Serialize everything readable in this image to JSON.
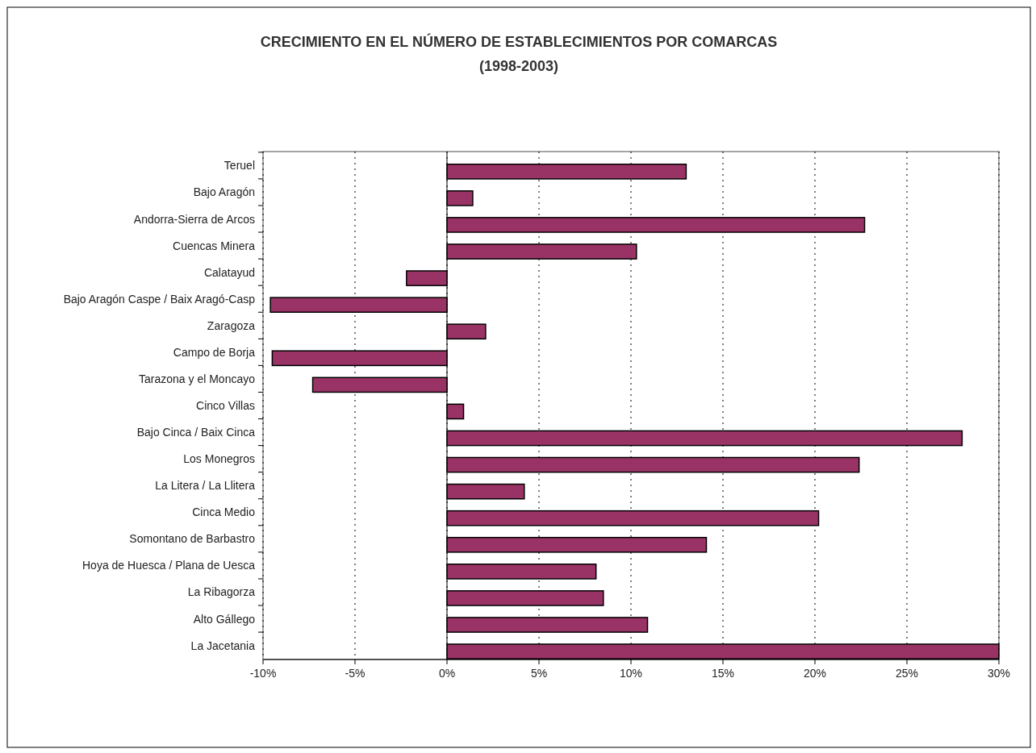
{
  "chart_data": {
    "type": "bar",
    "orientation": "horizontal",
    "title": "CRECIMIENTO EN EL NÚMERO DE ESTABLECIMIENTOS POR COMARCAS",
    "subtitle": "(1998-2003)",
    "categories": [
      "Teruel",
      "Bajo Aragón",
      "Andorra-Sierra de Arcos",
      "Cuencas Minera",
      "Calatayud",
      "Bajo Aragón Caspe / Baix Aragó-Casp",
      "Zaragoza",
      "Campo de Borja",
      "Tarazona y el Moncayo",
      "Cinco Villas",
      "Bajo Cinca / Baix Cinca",
      "Los Monegros",
      "La Litera / La Llitera",
      "Cinca Medio",
      "Somontano de Barbastro",
      "Hoya de Huesca / Plana de Uesca",
      "La Ribagorza",
      "Alto Gállego",
      "La Jacetania"
    ],
    "values": [
      0.13,
      0.014,
      0.227,
      0.103,
      -0.022,
      -0.096,
      0.021,
      -0.095,
      -0.073,
      0.009,
      0.28,
      0.224,
      0.042,
      0.202,
      0.141,
      0.081,
      0.085,
      0.109,
      0.3
    ],
    "color": "#993366",
    "xlim": [
      -0.1,
      0.3
    ],
    "xticks": [
      {
        "value": -0.1,
        "label": "-10%"
      },
      {
        "value": -0.05,
        "label": "-5%"
      },
      {
        "value": 0,
        "label": "0%"
      },
      {
        "value": 0.05,
        "label": "5%"
      },
      {
        "value": 0.1,
        "label": "10%"
      },
      {
        "value": 0.15,
        "label": "15%"
      },
      {
        "value": 0.2,
        "label": "20%"
      },
      {
        "value": 0.25,
        "label": "25%"
      },
      {
        "value": 0.3,
        "label": "30%"
      }
    ],
    "grid": "x"
  }
}
